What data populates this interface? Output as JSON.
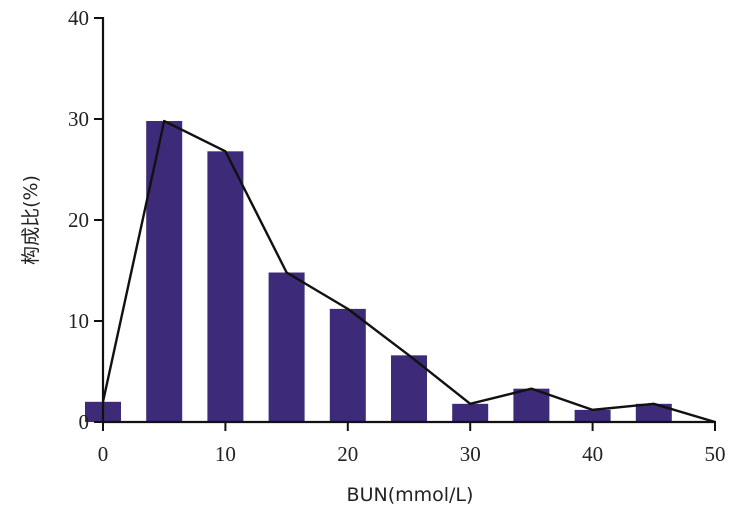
{
  "chart_data": {
    "type": "bar",
    "xlabel": "BUN(mmol/L)",
    "ylabel": "构成比(%)",
    "xlim": [
      0,
      50
    ],
    "ylim": [
      0,
      40
    ],
    "x_ticks": [
      "0",
      "10",
      "20",
      "30",
      "40",
      "50"
    ],
    "y_ticks": [
      "0",
      "10",
      "20",
      "30",
      "40"
    ],
    "grid": false,
    "bar_color": "#3d2a78",
    "line_color": "#111111",
    "bars": {
      "x": [
        0,
        5,
        10,
        15,
        20,
        25,
        30,
        35,
        40,
        45
      ],
      "values": [
        2.0,
        29.8,
        26.8,
        14.8,
        11.2,
        6.6,
        1.8,
        3.3,
        1.2,
        1.8
      ]
    },
    "frequency_polygon": {
      "x": [
        0,
        5,
        10,
        15,
        20,
        25,
        30,
        35,
        40,
        45,
        50
      ],
      "values": [
        2.0,
        29.8,
        26.8,
        14.8,
        11.2,
        6.6,
        1.8,
        3.3,
        1.2,
        1.8,
        0
      ]
    }
  }
}
